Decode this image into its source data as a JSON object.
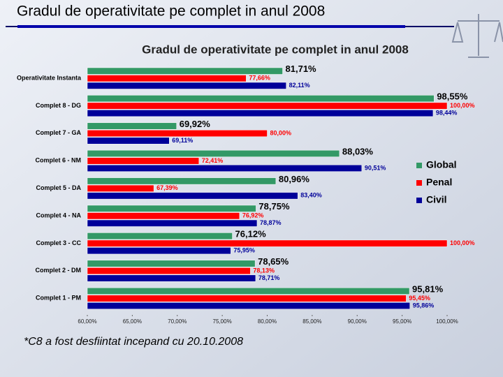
{
  "slide_title": "Gradul de operativitate pe complet in anul 2008",
  "footnote": "*C8 a fost desfiintat incepand cu 20.10.2008",
  "chart_data": {
    "type": "hbar",
    "title": "Gradul de operativitate pe complet in anul 2008",
    "categories": [
      "Operativitate Instanta",
      "Complet 8 - DG",
      "Complet 7 - GA",
      "Complet 6 - NM",
      "Complet 5 - DA",
      "Complet 4 - NA",
      "Complet 3 - CC",
      "Complet 2 - DM",
      "Complet 1 - PM"
    ],
    "series": [
      {
        "name": "Global",
        "color": "#339966",
        "values": [
          81.71,
          98.55,
          69.92,
          88.03,
          80.96,
          78.75,
          76.12,
          78.65,
          95.81
        ],
        "value_labels": [
          "81,71%",
          "98,55%",
          "69,92%",
          "88,03%",
          "80,96%",
          "78,75%",
          "76,12%",
          "78,65%",
          "95,81%"
        ]
      },
      {
        "name": "Penal",
        "color": "#ff0000",
        "values": [
          77.66,
          100.0,
          80.0,
          72.41,
          67.39,
          76.92,
          100.0,
          78.13,
          95.45
        ],
        "value_labels": [
          "77,66%",
          "100,00%",
          "80,00%",
          "72,41%",
          "67,39%",
          "76,92%",
          "100,00%",
          "78,13%",
          "95,45%"
        ]
      },
      {
        "name": "Civil",
        "color": "#000099",
        "values": [
          82.11,
          98.44,
          69.11,
          90.51,
          83.4,
          78.87,
          75.95,
          78.71,
          95.86
        ],
        "value_labels": [
          "82,11%",
          "98,44%",
          "69,11%",
          "90,51%",
          "83,40%",
          "78,87%",
          "75,95%",
          "78,71%",
          "95,86%"
        ]
      }
    ],
    "xlim": [
      60,
      100
    ],
    "xticks": [
      {
        "value": 60,
        "label": "60,00%"
      },
      {
        "value": 65,
        "label": "65,00%"
      },
      {
        "value": 70,
        "label": "70,00%"
      },
      {
        "value": 75,
        "label": "75,00%"
      },
      {
        "value": 80,
        "label": "80,00%"
      },
      {
        "value": 85,
        "label": "85,00%"
      },
      {
        "value": 90,
        "label": "90,00%"
      },
      {
        "value": 95,
        "label": "95,00%"
      },
      {
        "value": 100,
        "label": "100,00%"
      }
    ],
    "legend": "right"
  }
}
